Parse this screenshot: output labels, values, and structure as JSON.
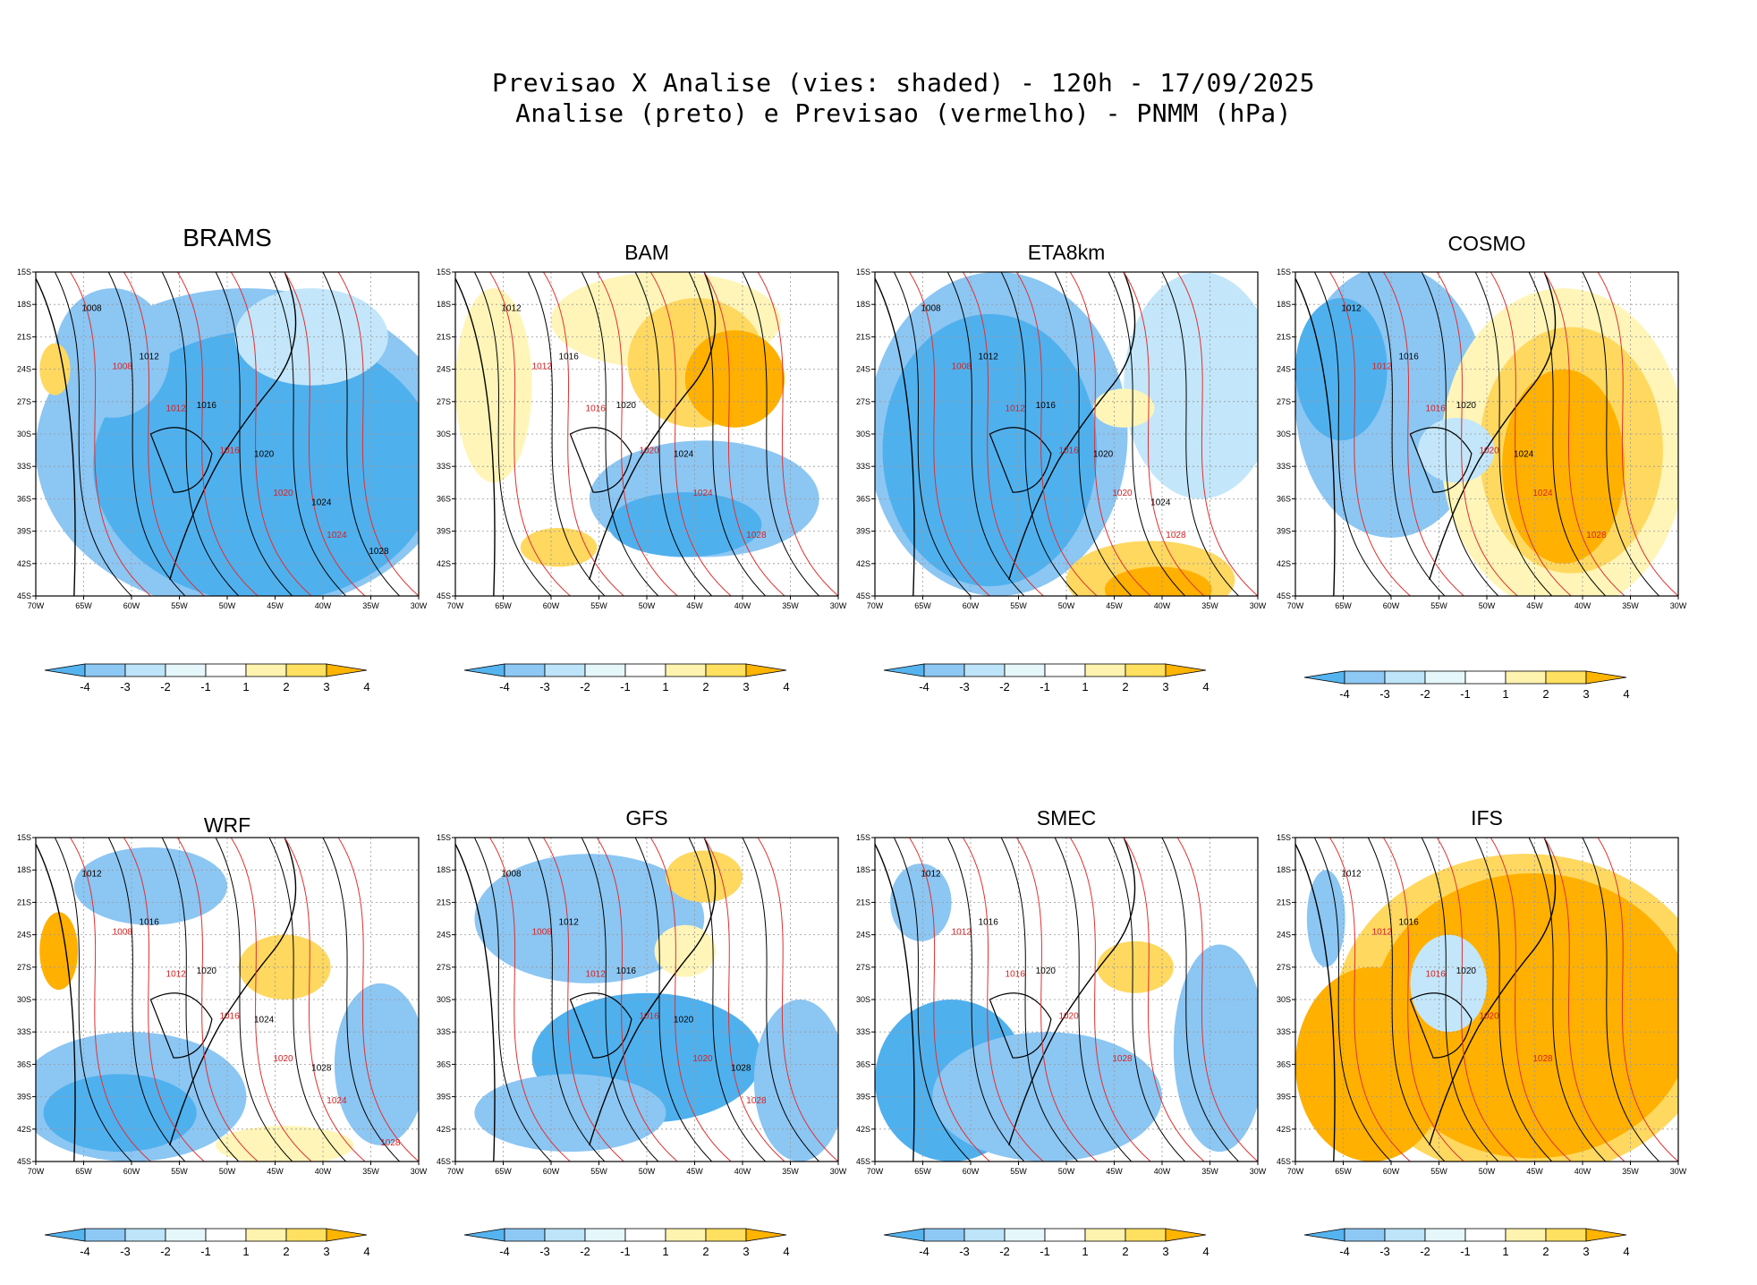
{
  "title": {
    "line1": "Previsao X Analise (vies: shaded) - 120h - 17/09/2025",
    "line2": "Analise (preto) e Previsao (vermelho) - PNMM (hPa)"
  },
  "axes": {
    "lat_labels": [
      "15S",
      "18S",
      "21S",
      "24S",
      "27S",
      "30S",
      "33S",
      "36S",
      "39S",
      "42S",
      "45S"
    ],
    "lon_labels": [
      "70W",
      "65W",
      "60W",
      "55W",
      "50W",
      "45W",
      "40W",
      "35W",
      "30W"
    ]
  },
  "colorbar": {
    "labels": [
      "-4",
      "-3",
      "-2",
      "-1",
      "1",
      "2",
      "3",
      "4"
    ],
    "colors": [
      "#55b4f0",
      "#8ec8f4",
      "#bde4f8",
      "#e6f7fb",
      "#ffffff",
      "#fff3b0",
      "#ffe060",
      "#ffb400"
    ]
  },
  "bias_colors": {
    "strong_neg": "#4fb0ee",
    "mod_neg": "#8cc6f3",
    "weak_neg": "#c3e6fa",
    "weak_pos": "#fff5b8",
    "mod_pos": "#ffd860",
    "strong_pos": "#ffb000",
    "analysis_line": "#000000",
    "forecast_line": "#e03030"
  },
  "panels": [
    {
      "name": "BRAMS",
      "bias": "negative-strong",
      "black_labels": [
        "1008",
        "1012",
        "1016",
        "1020",
        "1024",
        "1028"
      ],
      "red_labels": [
        "1008",
        "1012",
        "1016",
        "1020",
        "1024"
      ]
    },
    {
      "name": "BAM",
      "bias": "positive-north",
      "black_labels": [
        "1012",
        "1016",
        "1020",
        "1024"
      ],
      "red_labels": [
        "1012",
        "1016",
        "1020",
        "1024",
        "1028"
      ]
    },
    {
      "name": "ETA8km",
      "bias": "negative-west",
      "black_labels": [
        "1008",
        "1012",
        "1016",
        "1020",
        "1024"
      ],
      "red_labels": [
        "1008",
        "1012",
        "1016",
        "1020",
        "1028"
      ]
    },
    {
      "name": "COSMO",
      "bias": "positive-east",
      "black_labels": [
        "1012",
        "1016",
        "1020",
        "1024"
      ],
      "red_labels": [
        "1012",
        "1016",
        "1020",
        "1024",
        "1028"
      ]
    },
    {
      "name": "WRF",
      "bias": "mixed",
      "black_labels": [
        "1012",
        "1016",
        "1020",
        "1024",
        "1028"
      ],
      "red_labels": [
        "1008",
        "1012",
        "1016",
        "1020",
        "1024",
        "1028"
      ]
    },
    {
      "name": "GFS",
      "bias": "negative-mid",
      "black_labels": [
        "1008",
        "1012",
        "1016",
        "1020",
        "1028"
      ],
      "red_labels": [
        "1008",
        "1012",
        "1016",
        "1020",
        "1028"
      ]
    },
    {
      "name": "SMEC",
      "bias": "negative-light",
      "black_labels": [
        "1012",
        "1016",
        "1020"
      ],
      "red_labels": [
        "1012",
        "1016",
        "1020",
        "1028"
      ]
    },
    {
      "name": "IFS",
      "bias": "positive-strong",
      "black_labels": [
        "1012",
        "1016",
        "1020"
      ],
      "red_labels": [
        "1012",
        "1016",
        "1020",
        "1028"
      ]
    }
  ]
}
